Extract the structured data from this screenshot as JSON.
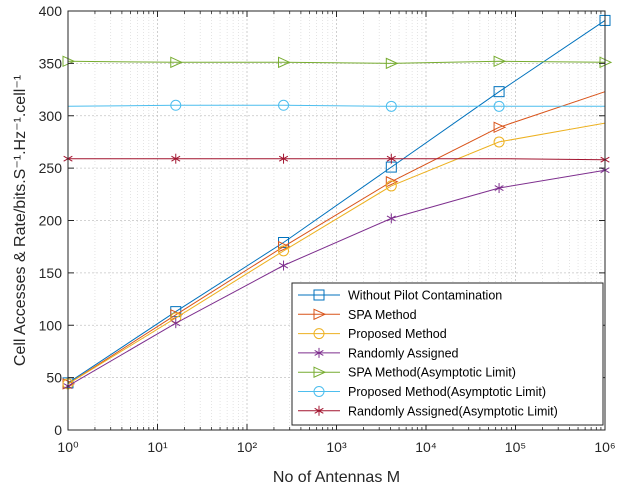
{
  "chart_data": {
    "type": "line",
    "xlabel": "No of Antennas M",
    "ylabel": "Cell Accesses & Rate/bits.S⁻¹.Hz⁻¹.cell⁻¹",
    "xscale": "log",
    "xlim": [
      1,
      1000000
    ],
    "ylim": [
      0,
      400
    ],
    "grid": true,
    "legend_position": "lower-right",
    "x_tick_labels": [
      "10⁰",
      "10¹",
      "10²",
      "10³",
      "10⁴",
      "10⁵",
      "10⁶"
    ],
    "y_tick_labels": [
      "0",
      "50",
      "100",
      "150",
      "200",
      "250",
      "300",
      "350",
      "400"
    ],
    "x": [
      1,
      16,
      256,
      4096,
      65536,
      1000000
    ],
    "series": [
      {
        "name": "Without Pilot Contamination",
        "color": "#0072BD",
        "marker": "square",
        "values": [
          45,
          113,
          179,
          251,
          323,
          391
        ]
      },
      {
        "name": "SPA Method",
        "color": "#D95319",
        "marker": "triangle-right",
        "marker_indices": [
          0,
          1,
          2,
          3,
          4
        ],
        "values": [
          44,
          110,
          175,
          237,
          289,
          323
        ]
      },
      {
        "name": "Proposed Method",
        "color": "#EDB120",
        "marker": "circle",
        "marker_indices": [
          0,
          1,
          2,
          3,
          4
        ],
        "values": [
          44,
          107,
          171,
          233,
          275,
          293
        ]
      },
      {
        "name": "Randomly Assigned",
        "color": "#7E2F8E",
        "marker": "asterisk",
        "values": [
          42,
          102,
          157,
          202,
          231,
          248
        ]
      },
      {
        "name": "SPA Method(Asymptotic Limit)",
        "color": "#77AC30",
        "marker": "triangle-right",
        "values": [
          352,
          351,
          351,
          350,
          352,
          351
        ]
      },
      {
        "name": "Proposed Method(Asymptotic Limit)",
        "color": "#4DBEEE",
        "marker": "circle",
        "marker_indices": [
          1,
          2,
          3,
          4
        ],
        "values": [
          309,
          310,
          310,
          309,
          309,
          309
        ]
      },
      {
        "name": "Randomly Assigned(Asymptotic Limit)",
        "color": "#A2142F",
        "marker": "asterisk",
        "marker_indices": [
          0,
          1,
          2,
          3,
          5
        ],
        "values": [
          259,
          259,
          259,
          259,
          259,
          258
        ]
      }
    ]
  }
}
